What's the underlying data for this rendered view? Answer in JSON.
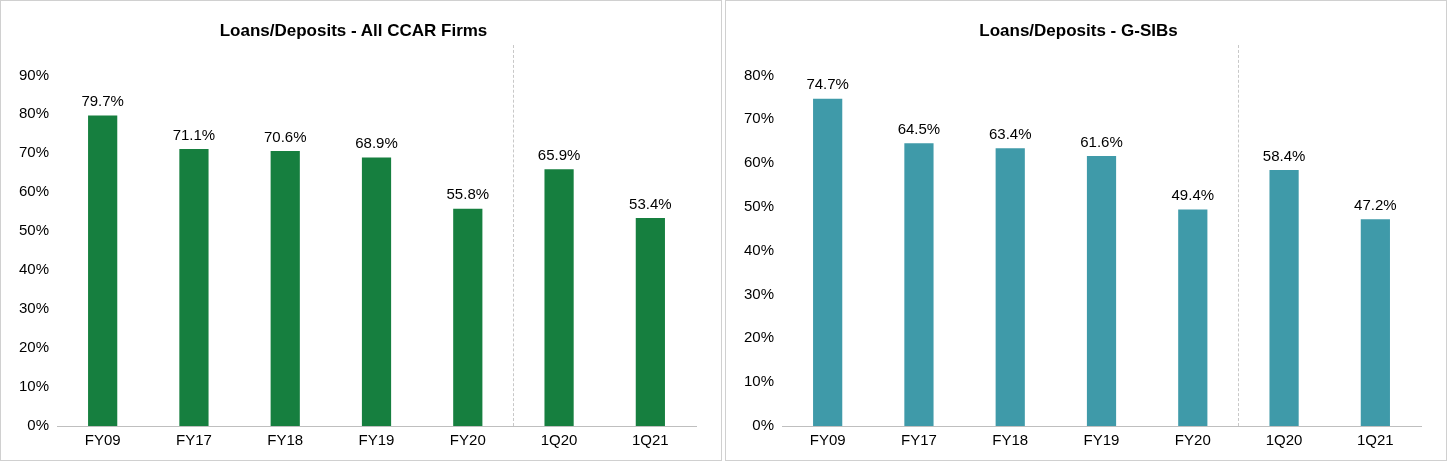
{
  "chart_data": [
    {
      "type": "bar",
      "title": "Loans/Deposits - All CCAR Firms",
      "categories": [
        "FY09",
        "FY17",
        "FY18",
        "FY19",
        "FY20",
        "1Q20",
        "1Q21"
      ],
      "values": [
        79.7,
        71.1,
        70.6,
        68.9,
        55.8,
        65.9,
        53.4
      ],
      "value_labels": [
        "79.7%",
        "71.1%",
        "70.6%",
        "68.9%",
        "55.8%",
        "65.9%",
        "53.4%"
      ],
      "color": "#167f3f",
      "ylim": [
        0,
        90
      ],
      "yticks": [
        {
          "value": 0,
          "label": "0%"
        },
        {
          "value": 10,
          "label": "10%"
        },
        {
          "value": 20,
          "label": "20%"
        },
        {
          "value": 30,
          "label": "30%"
        },
        {
          "value": 40,
          "label": "40%"
        },
        {
          "value": 50,
          "label": "50%"
        },
        {
          "value": 60,
          "label": "60%"
        },
        {
          "value": 70,
          "label": "70%"
        },
        {
          "value": 80,
          "label": "80%"
        },
        {
          "value": 90,
          "label": "90%"
        }
      ],
      "grid": false,
      "legend": false
    },
    {
      "type": "bar",
      "title": "Loans/Deposits - G-SIBs",
      "categories": [
        "FY09",
        "FY17",
        "FY18",
        "FY19",
        "FY20",
        "1Q20",
        "1Q21"
      ],
      "values": [
        74.7,
        64.5,
        63.4,
        61.6,
        49.4,
        58.4,
        47.2
      ],
      "value_labels": [
        "74.7%",
        "64.5%",
        "63.4%",
        "61.6%",
        "49.4%",
        "58.4%",
        "47.2%"
      ],
      "color": "#3f9aa9",
      "ylim": [
        0,
        80
      ],
      "yticks": [
        {
          "value": 0,
          "label": "0%"
        },
        {
          "value": 10,
          "label": "10%"
        },
        {
          "value": 20,
          "label": "20%"
        },
        {
          "value": 30,
          "label": "30%"
        },
        {
          "value": 40,
          "label": "40%"
        },
        {
          "value": 50,
          "label": "50%"
        },
        {
          "value": 60,
          "label": "60%"
        },
        {
          "value": 70,
          "label": "70%"
        },
        {
          "value": 80,
          "label": "80%"
        }
      ],
      "grid": false,
      "legend": false
    }
  ]
}
